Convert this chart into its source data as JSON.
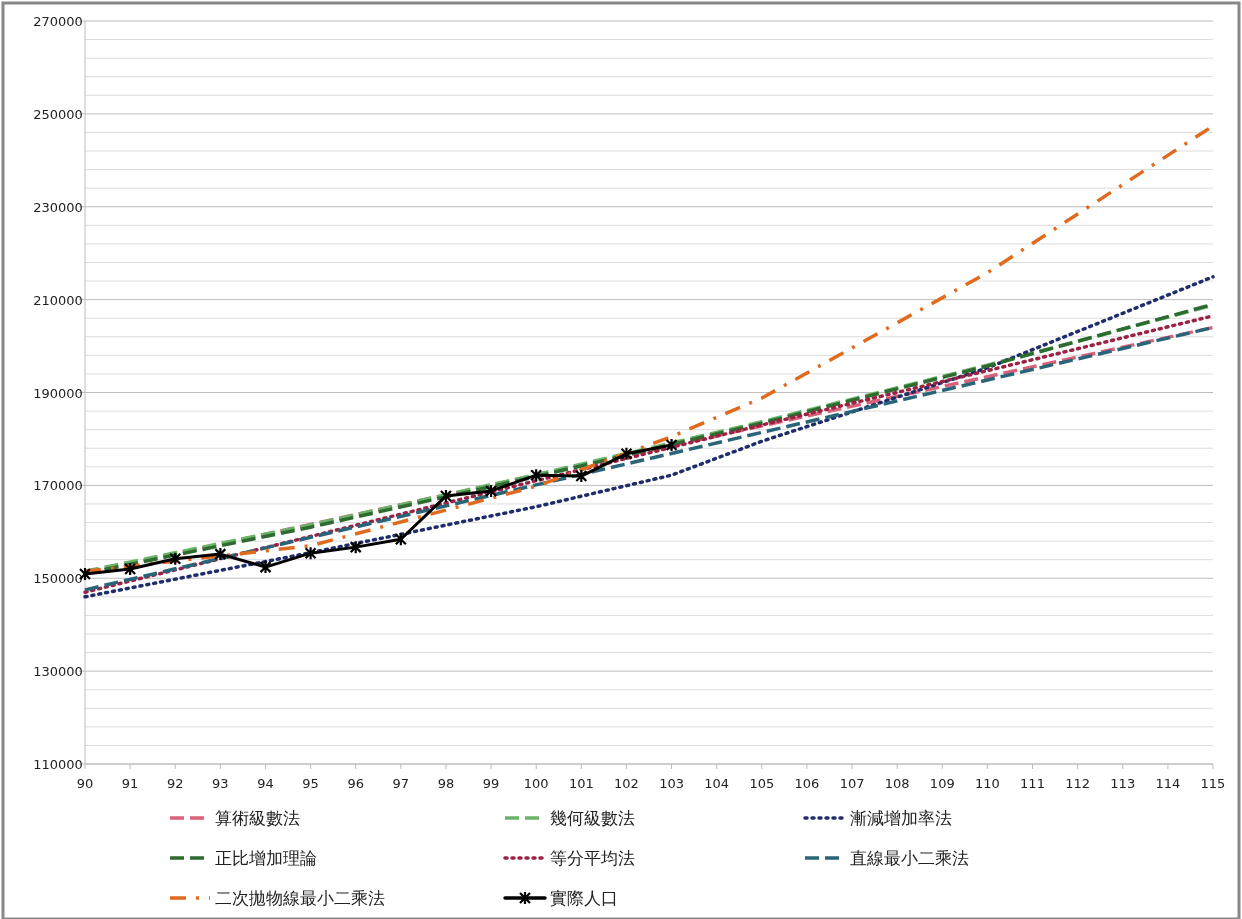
{
  "chart_data": {
    "type": "line",
    "xlim": [
      90,
      115
    ],
    "xticks": [
      90,
      91,
      92,
      93,
      94,
      95,
      96,
      97,
      98,
      99,
      100,
      101,
      102,
      103,
      104,
      105,
      106,
      107,
      108,
      109,
      110,
      111,
      112,
      113,
      114,
      115
    ],
    "ylim": [
      110000,
      270000
    ],
    "yticks": [
      110000,
      {
        "value": 114000,
        "label": null
      },
      {
        "value": 118000,
        "label": null
      },
      {
        "value": 122000,
        "label": null
      },
      {
        "value": 126000,
        "label": null
      },
      130000,
      {
        "value": 134000,
        "label": null
      },
      {
        "value": 138000,
        "label": null
      },
      {
        "value": 142000,
        "label": null
      },
      {
        "value": 146000,
        "label": null
      },
      150000,
      {
        "value": 154000,
        "label": null
      },
      {
        "value": 158000,
        "label": null
      },
      {
        "value": 162000,
        "label": null
      },
      {
        "value": 166000,
        "label": null
      },
      170000,
      {
        "value": 174000,
        "label": null
      },
      {
        "value": 178000,
        "label": null
      },
      {
        "value": 182000,
        "label": null
      },
      {
        "value": 186000,
        "label": null
      },
      190000,
      {
        "value": 194000,
        "label": null
      },
      {
        "value": 198000,
        "label": null
      },
      {
        "value": 202000,
        "label": null
      },
      {
        "value": 206000,
        "label": null
      },
      210000,
      {
        "value": 214000,
        "label": null
      },
      {
        "value": 218000,
        "label": null
      },
      {
        "value": 222000,
        "label": null
      },
      {
        "value": 226000,
        "label": null
      },
      230000,
      {
        "value": 234000,
        "label": null
      },
      {
        "value": 238000,
        "label": null
      },
      {
        "value": 242000,
        "label": null
      },
      {
        "value": 246000,
        "label": null
      },
      250000,
      {
        "value": 254000,
        "label": null
      },
      {
        "value": 258000,
        "label": null
      },
      {
        "value": 262000,
        "label": null
      },
      {
        "value": 266000,
        "label": null
      },
      270000
    ],
    "grid": "y",
    "legend": "bottom",
    "series": [
      {
        "name": "算術級數法",
        "color": "#d9627a",
        "line_style": "dashed",
        "marker": "none",
        "x": [
          90,
          95,
          100,
          105,
          110,
          115
        ],
        "values": [
          151000,
          161600,
          172200,
          182800,
          193400,
          204000
        ]
      },
      {
        "name": "幾何級數法",
        "color": "#6ab46a",
        "line_style": "dashed",
        "marker": "none",
        "x": [
          90,
          95,
          100,
          105,
          110,
          115
        ],
        "values": [
          151500,
          161500,
          172300,
          183700,
          195900,
          208800
        ]
      },
      {
        "name": "漸減增加率法",
        "color": "#1f2d6b",
        "line_style": "dotted",
        "marker": "none",
        "x": [
          90,
          95,
          100,
          103,
          105,
          110,
          115
        ],
        "values": [
          146000,
          155500,
          165400,
          172200,
          179500,
          195300,
          214900
        ]
      },
      {
        "name": "正比增加理論",
        "color": "#2e6b30",
        "line_style": "dashed",
        "marker": "none",
        "x": [
          90,
          95,
          100,
          105,
          110,
          115
        ],
        "values": [
          151000,
          161000,
          171900,
          183400,
          195700,
          209000
        ]
      },
      {
        "name": "等分平均法",
        "color": "#9b2242",
        "line_style": "dotted",
        "marker": "none",
        "x": [
          90,
          95,
          100,
          105,
          110,
          115
        ],
        "values": [
          147000,
          159000,
          171000,
          183000,
          194700,
          206500
        ]
      },
      {
        "name": "直線最小二乘法",
        "color": "#2a6478",
        "line_style": "dashed",
        "marker": "none",
        "x": [
          90,
          95,
          100,
          105,
          110,
          115
        ],
        "values": [
          147500,
          158800,
          170100,
          181400,
          192700,
          204000
        ]
      },
      {
        "name": "二次拋物線最小二乘法",
        "color": "#e06a1e",
        "line_style": "dashdot",
        "marker": "none",
        "x": [
          90,
          95,
          100,
          103,
          105,
          110,
          115
        ],
        "values": [
          151500,
          157000,
          169800,
          180500,
          188800,
          215800,
          247400
        ]
      },
      {
        "name": "實際人口",
        "color": "#000000",
        "line_style": "solid",
        "marker": "cross",
        "x": [
          90,
          91,
          92,
          93,
          94,
          95,
          96,
          97,
          98,
          99,
          100,
          101,
          102,
          103
        ],
        "values": [
          150900,
          152000,
          154200,
          155200,
          152400,
          155400,
          156700,
          158400,
          167700,
          168800,
          172200,
          172000,
          176800,
          178700
        ]
      }
    ]
  }
}
